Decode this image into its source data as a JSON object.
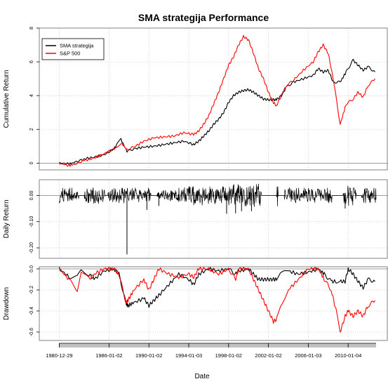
{
  "title": "SMA strategija Performance",
  "xlabel": "Date",
  "colors": {
    "strategy": "#000000",
    "benchmark": "#ff0000",
    "grid": "#c8c8c8",
    "frame": "#808080",
    "xaxis_band": "#c0c0c0"
  },
  "x_ticks": [
    "1980-12-29",
    "1986-01-02",
    "1990-01-02",
    "1994-01-03",
    "1998-01-02",
    "2002-01-02",
    "2006-01-03",
    "2010-01-04"
  ],
  "chart_data": [
    {
      "type": "line",
      "panel": "cumulative",
      "ylabel": "Cumulative Return",
      "ylim": [
        -0.4,
        8.0
      ],
      "yticks": [
        "0",
        "2",
        "4",
        "6",
        "8"
      ],
      "ytick_values": [
        0,
        2,
        4,
        6,
        8
      ],
      "grid": true,
      "legend": {
        "placement": "top-left",
        "entries": [
          "SMA strategija",
          "S&P 500"
        ]
      },
      "x": [
        1981.0,
        1982.0,
        1982.6,
        1983.5,
        1984.5,
        1985.5,
        1986.5,
        1986.8,
        1987.2,
        1987.8,
        1988.5,
        1989.5,
        1990.5,
        1991.5,
        1992.5,
        1993.5,
        1994.5,
        1995.0,
        1995.5,
        1996.0,
        1996.5,
        1997.0,
        1997.5,
        1998.0,
        1998.5,
        1999.0,
        1999.5,
        2000.0,
        2000.5,
        2001.0,
        2001.5,
        2002.0,
        2002.5,
        2002.8,
        2003.3,
        2003.8,
        2004.5,
        2005.5,
        2006.5,
        2007.0,
        2007.5,
        2008.0,
        2008.5,
        2009.2,
        2009.8,
        2010.5,
        2011.0,
        2011.5,
        2012.0,
        2012.7
      ],
      "series": [
        {
          "name": "SMA strategija",
          "values": [
            0.0,
            -0.05,
            0.05,
            0.25,
            0.35,
            0.5,
            0.85,
            1.1,
            1.4,
            0.7,
            0.85,
            0.95,
            1.0,
            1.1,
            1.2,
            1.3,
            1.1,
            1.3,
            1.6,
            1.9,
            2.3,
            2.6,
            3.0,
            3.6,
            4.0,
            4.2,
            4.3,
            4.35,
            4.2,
            4.0,
            3.8,
            3.75,
            3.75,
            3.75,
            4.0,
            4.5,
            4.8,
            5.0,
            5.2,
            5.6,
            5.4,
            5.5,
            4.8,
            4.8,
            5.4,
            6.1,
            5.8,
            5.5,
            5.7,
            5.4
          ]
        },
        {
          "name": "S&P 500",
          "values": [
            0.0,
            -0.15,
            -0.05,
            0.15,
            0.3,
            0.55,
            0.85,
            1.0,
            1.2,
            0.8,
            0.95,
            1.3,
            1.5,
            1.55,
            1.6,
            1.8,
            1.7,
            1.9,
            2.3,
            2.8,
            3.5,
            4.2,
            5.0,
            5.8,
            6.3,
            7.0,
            7.5,
            7.3,
            6.5,
            5.6,
            5.0,
            4.2,
            3.6,
            3.4,
            4.0,
            4.6,
            4.9,
            5.5,
            6.0,
            6.6,
            7.0,
            6.5,
            5.0,
            2.3,
            3.5,
            3.8,
            4.2,
            3.9,
            4.6,
            5.0
          ]
        }
      ]
    },
    {
      "type": "line",
      "panel": "daily_return",
      "ylabel": "Daily Return",
      "ylim": [
        -0.24,
        0.06
      ],
      "yticks": [
        "0.00",
        "-0.10",
        "-0.20"
      ],
      "ytick_values": [
        0.0,
        -0.1,
        -0.2
      ],
      "grid": true,
      "flat_periods": [
        [
          1983.0,
          1983.5
        ],
        [
          1985.6,
          1985.9
        ],
        [
          1990.2,
          1990.8
        ],
        [
          2001.3,
          2002.8
        ],
        [
          2003.0,
          2003.6
        ],
        [
          2008.4,
          2009.5
        ],
        [
          2010.8,
          2011.3
        ]
      ],
      "spikes": [
        {
          "x": 1987.8,
          "y": -0.225
        },
        {
          "x": 1989.8,
          "y": -0.055
        },
        {
          "x": 1991.0,
          "y": -0.04
        },
        {
          "x": 1997.8,
          "y": -0.07
        },
        {
          "x": 1998.7,
          "y": -0.068
        },
        {
          "x": 1999.3,
          "y": -0.06
        },
        {
          "x": 2000.3,
          "y": -0.06
        },
        {
          "x": 2009.7,
          "y": -0.05
        }
      ],
      "series": [
        {
          "name": "SMA strategija",
          "amplitude": [
            0.03,
            0.02,
            0.035,
            0.025,
            0.03,
            0.03,
            0.03,
            0.02,
            0.025,
            0.04,
            0.04,
            0.035,
            0.04,
            0.045,
            0.045,
            0.045,
            0.045,
            0.035,
            0.03,
            0.03,
            0.03,
            0.04,
            0.04,
            0.035
          ]
        }
      ]
    },
    {
      "type": "area",
      "panel": "drawdown",
      "ylabel": "Drawdown",
      "ylim": [
        -0.68,
        0.02
      ],
      "yticks": [
        "0.0",
        "-0.2",
        "-0.4",
        "-0.6"
      ],
      "ytick_values": [
        0.0,
        -0.2,
        -0.4,
        -0.6
      ],
      "grid": true,
      "x": [
        1981.0,
        1982.0,
        1982.8,
        1983.2,
        1984.0,
        1984.5,
        1985.5,
        1986.5,
        1987.0,
        1987.7,
        1987.9,
        1988.5,
        1989.5,
        1990.0,
        1990.5,
        1991.0,
        1992.0,
        1993.0,
        1994.0,
        1994.5,
        1995.0,
        1996.0,
        1997.0,
        1998.0,
        1998.7,
        1999.0,
        2000.0,
        2000.5,
        2001.0,
        2001.5,
        2002.0,
        2002.5,
        2002.8,
        2003.2,
        2004.0,
        2005.0,
        2006.0,
        2007.0,
        2007.6,
        2008.3,
        2008.8,
        2009.2,
        2009.7,
        2010.0,
        2010.5,
        2011.0,
        2011.5,
        2012.0,
        2012.7
      ],
      "series": [
        {
          "name": "SMA strategija",
          "values": [
            0.0,
            -0.08,
            -0.08,
            -0.02,
            -0.05,
            -0.1,
            -0.02,
            0.0,
            -0.05,
            -0.33,
            -0.35,
            -0.32,
            -0.28,
            -0.35,
            -0.3,
            -0.25,
            -0.15,
            -0.05,
            -0.1,
            -0.15,
            -0.05,
            0.0,
            -0.02,
            0.0,
            -0.05,
            -0.02,
            0.0,
            -0.05,
            -0.1,
            -0.1,
            -0.1,
            -0.1,
            -0.1,
            -0.05,
            -0.02,
            -0.05,
            -0.03,
            0.0,
            -0.05,
            -0.12,
            -0.12,
            -0.12,
            -0.12,
            0.0,
            -0.05,
            -0.12,
            -0.18,
            -0.1,
            -0.12
          ]
        },
        {
          "name": "S&P 500",
          "values": [
            0.0,
            -0.1,
            -0.2,
            -0.02,
            -0.1,
            -0.05,
            0.0,
            0.0,
            -0.05,
            -0.32,
            -0.3,
            -0.2,
            -0.1,
            -0.2,
            -0.1,
            0.0,
            -0.05,
            -0.08,
            -0.05,
            -0.08,
            0.0,
            0.0,
            -0.05,
            0.0,
            -0.1,
            0.0,
            0.0,
            -0.1,
            -0.2,
            -0.3,
            -0.4,
            -0.5,
            -0.48,
            -0.35,
            -0.2,
            -0.1,
            0.0,
            0.0,
            -0.1,
            -0.2,
            -0.4,
            -0.6,
            -0.45,
            -0.4,
            -0.45,
            -0.4,
            -0.45,
            -0.35,
            -0.3
          ]
        }
      ]
    }
  ]
}
